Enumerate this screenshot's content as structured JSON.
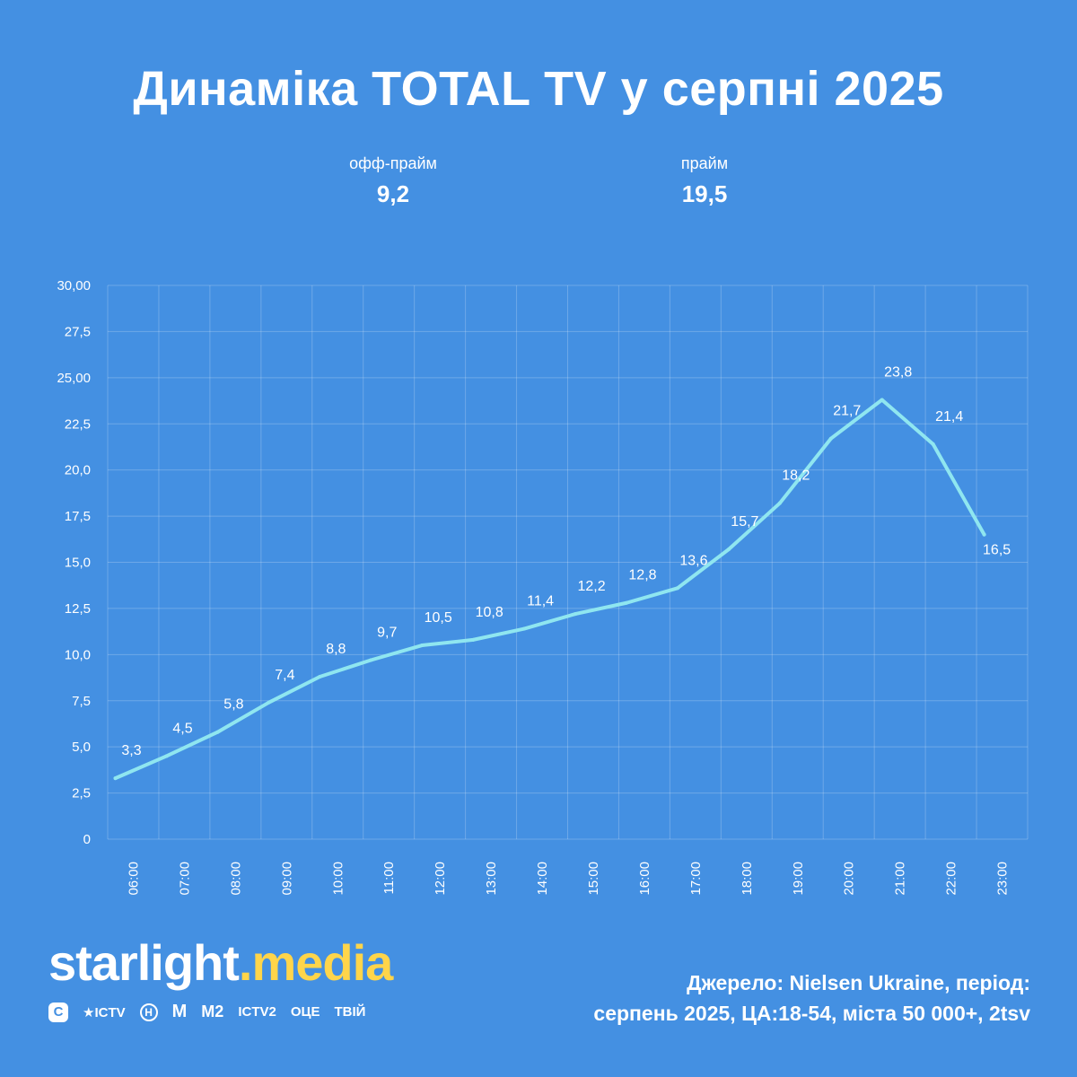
{
  "title": "Динаміка TOTAL TV у серпні 2025",
  "kpis": {
    "off_prime": {
      "label": "офф-прайм",
      "value": "9,2"
    },
    "prime": {
      "label": "прайм",
      "value": "19,5"
    }
  },
  "chart_data": {
    "type": "line",
    "title": "Динаміка TOTAL TV у серпні 2025",
    "xlabel": "",
    "ylabel": "",
    "ylim": [
      0,
      30
    ],
    "y_ticks": [
      {
        "value": 0,
        "label": "0"
      },
      {
        "value": 2.5,
        "label": "2,5"
      },
      {
        "value": 5,
        "label": "5,0"
      },
      {
        "value": 7.5,
        "label": "7,5"
      },
      {
        "value": 10,
        "label": "10,0"
      },
      {
        "value": 12.5,
        "label": "12,5"
      },
      {
        "value": 15,
        "label": "15,0"
      },
      {
        "value": 17.5,
        "label": "17,5"
      },
      {
        "value": 20,
        "label": "20,0"
      },
      {
        "value": 22.5,
        "label": "22,5"
      },
      {
        "value": 25,
        "label": "25,00"
      },
      {
        "value": 27.5,
        "label": "27,5"
      },
      {
        "value": 30,
        "label": "30,00"
      }
    ],
    "categories": [
      "06:00",
      "07:00",
      "08:00",
      "09:00",
      "10:00",
      "11:00",
      "12:00",
      "13:00",
      "14:00",
      "15:00",
      "16:00",
      "17:00",
      "18:00",
      "19:00",
      "20:00",
      "21:00",
      "22:00",
      "23:00"
    ],
    "series": [
      {
        "name": "TOTAL TV",
        "values": [
          3.3,
          4.5,
          5.8,
          7.4,
          8.8,
          9.7,
          10.5,
          10.8,
          11.4,
          12.2,
          12.8,
          13.6,
          15.7,
          18.2,
          21.7,
          23.8,
          21.4,
          16.5
        ],
        "labels": [
          "3,3",
          "4,5",
          "5,8",
          "7,4",
          "8,8",
          "9,7",
          "10,5",
          "10,8",
          "11,4",
          "12,2",
          "12,8",
          "13,6",
          "15,7",
          "18,2",
          "21,7",
          "23,8",
          "21,4",
          "16,5"
        ],
        "color": "#8fe6f0"
      }
    ],
    "grid": true,
    "legend": "none"
  },
  "logo": {
    "text": "starlight",
    "accent": ".media"
  },
  "channels": [
    "С",
    "ICTV",
    "Н",
    "M",
    "M2",
    "ICTV2",
    "ОЦЕ",
    "ТВІЙ"
  ],
  "source": {
    "line1": "Джерело: Nielsen Ukraine, період:",
    "line2": "серпень 2025, ЦА:18-54, міста 50 000+, 2tsv"
  },
  "colors": {
    "background": "#4490e2",
    "line": "#8fe6f0",
    "accent": "#ffd54a"
  }
}
